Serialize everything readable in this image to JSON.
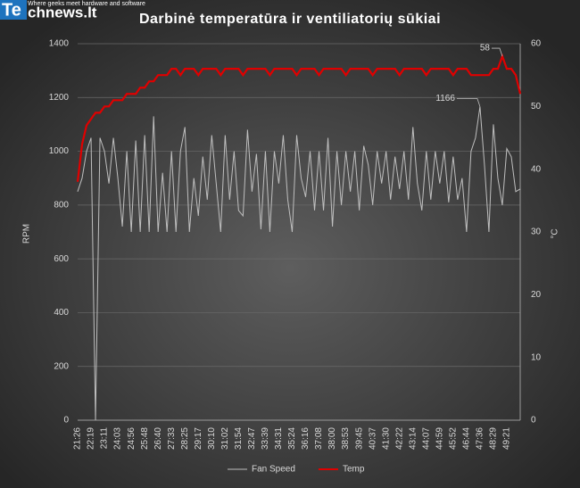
{
  "logo": {
    "brand_a": "Te",
    "brand_b": "chnews.lt",
    "tagline": "Where geeks meet hardware and software"
  },
  "chart_data": {
    "type": "line",
    "title": "Darbinė temperatūra ir ventiliatorių sūkiai",
    "ylabel": "RPM",
    "y2label": "°C",
    "categories": [
      "21:26",
      null,
      null,
      "22:19",
      null,
      null,
      "23:11",
      null,
      null,
      "24:03",
      null,
      null,
      "24:56",
      null,
      null,
      "25:48",
      null,
      null,
      "26:40",
      null,
      null,
      "27:33",
      null,
      null,
      "28:25",
      null,
      null,
      "29:17",
      null,
      null,
      "30:10",
      null,
      null,
      "31:02",
      null,
      null,
      "31:54",
      null,
      null,
      "32:47",
      null,
      null,
      "33:39",
      null,
      null,
      "34:31",
      null,
      null,
      "35:24",
      null,
      null,
      "36:16",
      null,
      null,
      "37:08",
      null,
      null,
      "38:00",
      null,
      null,
      "38:53",
      null,
      null,
      "39:45",
      null,
      null,
      "40:37",
      null,
      null,
      "41:30",
      null,
      null,
      "42:22",
      null,
      null,
      "43:14",
      null,
      null,
      "44:07",
      null,
      null,
      "44:59",
      null,
      null,
      "45:52",
      null,
      null,
      "46:44",
      null,
      null,
      "47:36",
      null,
      null,
      "48:29",
      null,
      null,
      "49:21",
      null,
      null,
      null
    ],
    "series": [
      {
        "name": "Fan Speed",
        "color": "#bfbfbf",
        "axis": "y",
        "values": [
          850,
          900,
          1000,
          1050,
          0,
          1050,
          1000,
          880,
          1050,
          900,
          720,
          1000,
          700,
          1040,
          700,
          1060,
          700,
          1130,
          700,
          920,
          700,
          1000,
          700,
          1000,
          1090,
          700,
          900,
          760,
          980,
          820,
          1060,
          880,
          700,
          1060,
          820,
          1000,
          780,
          760,
          1080,
          850,
          990,
          710,
          1000,
          700,
          1000,
          880,
          1060,
          820,
          700,
          1060,
          900,
          830,
          1000,
          780,
          1000,
          780,
          1050,
          720,
          1000,
          800,
          1000,
          850,
          1000,
          780,
          1020,
          950,
          800,
          1000,
          880,
          1000,
          820,
          980,
          860,
          1000,
          820,
          1090,
          880,
          780,
          1000,
          820,
          1000,
          880,
          1000,
          810,
          980,
          820,
          900,
          700,
          1000,
          1050,
          1166,
          950,
          700,
          1100,
          900,
          800,
          1010,
          980,
          850,
          860
        ],
        "label_points": [
          90
        ]
      },
      {
        "name": "Temp",
        "color": "#e00000",
        "axis": "y2",
        "values": [
          38,
          44,
          47,
          48,
          49,
          49,
          50,
          50,
          51,
          51,
          51,
          52,
          52,
          52,
          53,
          53,
          54,
          54,
          55,
          55,
          55,
          56,
          56,
          55,
          56,
          56,
          56,
          55,
          56,
          56,
          56,
          56,
          55,
          56,
          56,
          56,
          56,
          55,
          56,
          56,
          56,
          56,
          56,
          55,
          56,
          56,
          56,
          56,
          56,
          55,
          56,
          56,
          56,
          56,
          55,
          56,
          56,
          56,
          56,
          56,
          55,
          56,
          56,
          56,
          56,
          56,
          55,
          56,
          56,
          56,
          56,
          56,
          55,
          56,
          56,
          56,
          56,
          56,
          55,
          56,
          56,
          56,
          56,
          56,
          55,
          56,
          56,
          56,
          55,
          55,
          55,
          55,
          55,
          56,
          56,
          58,
          56,
          56,
          55,
          52
        ],
        "label_points": [
          95
        ]
      }
    ],
    "ylim": [
      0,
      1400
    ],
    "yticks": [
      0,
      200,
      400,
      600,
      800,
      1000,
      1200,
      1400
    ],
    "y2lim": [
      0,
      60
    ],
    "y2ticks": [
      0,
      10,
      20,
      30,
      40,
      50,
      60
    ],
    "grid": true,
    "legend": "bottom"
  }
}
